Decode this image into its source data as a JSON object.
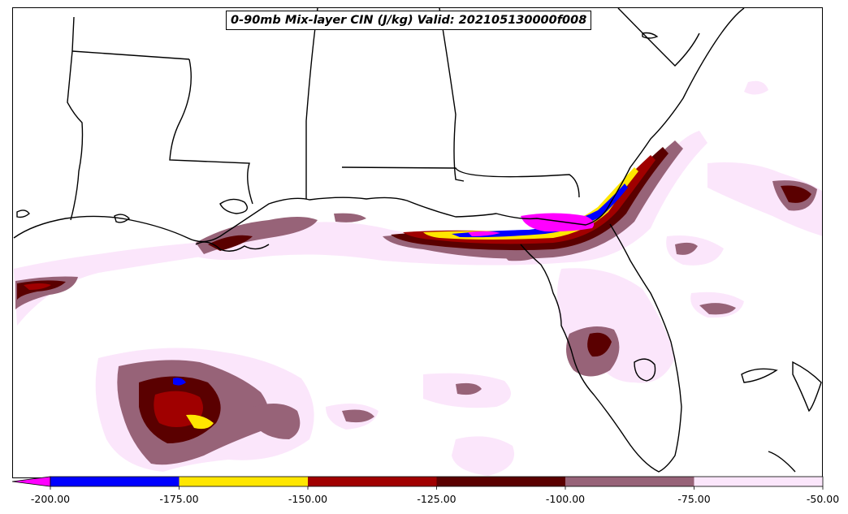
{
  "title": "0-90mb Mix-layer CIN (J/kg) Valid: 202105130000f008",
  "colorbar": {
    "extend": "min",
    "under_color": "#ff00ff",
    "bins": [
      {
        "from": -200,
        "to": -175,
        "color": "#0000ff"
      },
      {
        "from": -175,
        "to": -150,
        "color": "#ffe600"
      },
      {
        "from": -150,
        "to": -125,
        "color": "#a00000"
      },
      {
        "from": -125,
        "to": -100,
        "color": "#5a0000"
      },
      {
        "from": -100,
        "to": -75,
        "color": "#976378"
      },
      {
        "from": -75,
        "to": -50,
        "color": "#fbe6fb"
      }
    ],
    "tick_labels": [
      "-200.00",
      "-175.00",
      "-150.00",
      "-125.00",
      "-100.00",
      "-75.00",
      "-50.00"
    ]
  },
  "map": {
    "land_color": "#ffffff",
    "boundary_color": "#000000",
    "fields": [
      {
        "value": -60,
        "color": "#fbe6fb"
      },
      {
        "value": -90,
        "color": "#976378"
      },
      {
        "value": -115,
        "color": "#5a0000"
      },
      {
        "value": -140,
        "color": "#a00000"
      },
      {
        "value": -165,
        "color": "#ffe600"
      },
      {
        "value": -190,
        "color": "#0000ff"
      },
      {
        "value": -210,
        "color": "#ff00ff"
      }
    ]
  }
}
